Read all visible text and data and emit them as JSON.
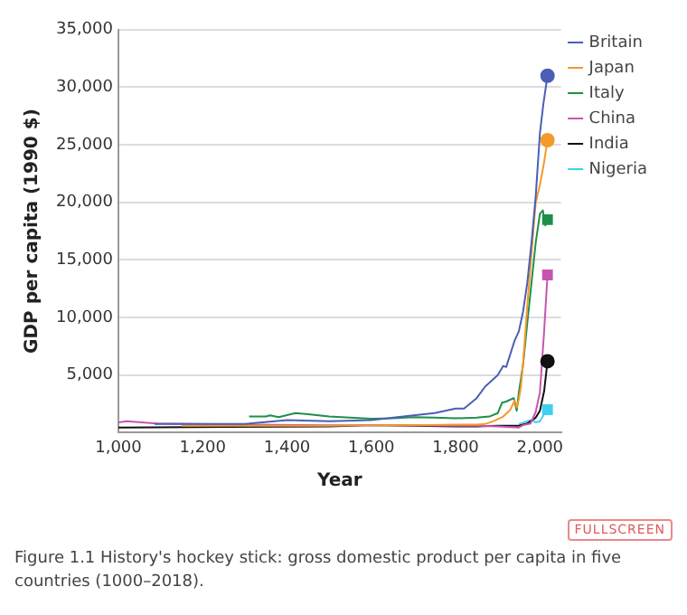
{
  "chart_data": {
    "type": "line",
    "xlabel": "Year",
    "ylabel": "GDP per capita (1990 $)",
    "xlim": [
      1000,
      2050
    ],
    "xticks": [
      {
        "value": 1000,
        "label": "1,000"
      },
      {
        "value": 1200,
        "label": "1,200"
      },
      {
        "value": 1400,
        "label": "1,400"
      },
      {
        "value": 1600,
        "label": "1,600"
      },
      {
        "value": 1800,
        "label": "1,800"
      },
      {
        "value": 2000,
        "label": "2,000"
      }
    ],
    "ylim": [
      0,
      35000
    ],
    "yticks": [
      {
        "value": 5000,
        "label": "5,000"
      },
      {
        "value": 10000,
        "label": "10,000"
      },
      {
        "value": 15000,
        "label": "15,000"
      },
      {
        "value": 20000,
        "label": "20,000"
      },
      {
        "value": 25000,
        "label": "25,000"
      },
      {
        "value": 30000,
        "label": "30,000"
      },
      {
        "value": 35000,
        "label": "35,000"
      }
    ],
    "grid": "y",
    "legend": "top right",
    "line_style": "solid",
    "annotations": [
      "FULLSCREEN",
      "Figure 1.1 History's hockey stick: gross domestic product per capita in five countries (1000–2018)."
    ],
    "series": [
      {
        "type": "scatter",
        "color": "#4a5fb5",
        "marker": "circle",
        "x": [
          2018
        ],
        "values": [
          31000
        ]
      },
      {
        "type": "scatter",
        "color": "#f39a2b",
        "marker": "circle",
        "x": [
          2018
        ],
        "values": [
          25400
        ]
      },
      {
        "type": "scatter",
        "color": "#1e8f4a",
        "marker": "square",
        "x": [
          2018
        ],
        "values": [
          18500
        ]
      },
      {
        "type": "scatter",
        "color": "#c756b0",
        "marker": "square",
        "x": [
          2018
        ],
        "values": [
          13700
        ]
      },
      {
        "type": "scatter",
        "color": "#111111",
        "marker": "circle",
        "x": [
          2018
        ],
        "values": [
          6200
        ]
      },
      {
        "type": "scatter",
        "color": "#3fd0f0",
        "marker": "square",
        "x": [
          2018
        ],
        "values": [
          2000
        ]
      },
      {
        "name": "Britain",
        "color": "#4a5fb5",
        "marker": "none",
        "x": [
          1086,
          1300,
          1400,
          1500,
          1600,
          1700,
          1750,
          1800,
          1820,
          1850,
          1870,
          1900,
          1913,
          1920,
          1940,
          1950,
          1960,
          1970,
          1980,
          1990,
          2000,
          2008,
          2018
        ],
        "values": [
          750,
          750,
          1100,
          1000,
          1100,
          1500,
          1700,
          2100,
          2100,
          3000,
          4000,
          5000,
          5800,
          5700,
          8000,
          8800,
          10500,
          13000,
          16500,
          20500,
          26000,
          28500,
          31000
        ]
      },
      {
        "name": "Japan",
        "color": "#f39a2b",
        "marker": "none",
        "x": [
          1150,
          1300,
          1400,
          1500,
          1600,
          1700,
          1800,
          1850,
          1870,
          1890,
          1913,
          1930,
          1940,
          1945,
          1950,
          1955,
          1960,
          1970,
          1980,
          1990,
          2000,
          2010,
          2018
        ],
        "values": [
          600,
          600,
          600,
          600,
          650,
          650,
          700,
          700,
          750,
          1000,
          1400,
          2000,
          2800,
          2200,
          2900,
          4000,
          6000,
          11000,
          15500,
          20000,
          21500,
          23500,
          25400
        ]
      },
      {
        "name": "Italy",
        "color": "#1e8f4a",
        "marker": "none",
        "x": [
          1310,
          1350,
          1360,
          1380,
          1420,
          1450,
          1500,
          1550,
          1600,
          1650,
          1700,
          1750,
          1800,
          1850,
          1880,
          1900,
          1910,
          1920,
          1938,
          1945,
          1950,
          1960,
          1970,
          1980,
          1990,
          2000,
          2007,
          2013,
          2018
        ],
        "values": [
          1400,
          1400,
          1500,
          1350,
          1700,
          1600,
          1400,
          1300,
          1200,
          1250,
          1350,
          1300,
          1250,
          1300,
          1400,
          1700,
          2600,
          2700,
          3000,
          1900,
          3500,
          5900,
          9500,
          13000,
          16500,
          19000,
          19300,
          18000,
          18500
        ]
      },
      {
        "name": "China",
        "color": "#c756b0",
        "marker": "none",
        "x": [
          1000,
          1020,
          1090,
          1300,
          1500,
          1600,
          1700,
          1800,
          1850,
          1900,
          1950,
          1960,
          1978,
          1990,
          2000,
          2010,
          2018
        ],
        "values": [
          900,
          1000,
          800,
          700,
          650,
          650,
          650,
          600,
          600,
          550,
          450,
          650,
          800,
          1800,
          3500,
          8800,
          13700
        ]
      },
      {
        "name": "India",
        "color": "#111111",
        "marker": "none",
        "x": [
          1000,
          1500,
          1600,
          1700,
          1800,
          1850,
          1900,
          1950,
          1970,
          1990,
          2000,
          2010,
          2018
        ],
        "values": [
          450,
          550,
          650,
          600,
          550,
          550,
          600,
          600,
          800,
          1300,
          1900,
          3600,
          6200
        ]
      },
      {
        "name": "Nigeria",
        "color": "#3fd0f0",
        "marker": "none",
        "x": [
          1950,
          1970,
          1980,
          1990,
          2000,
          2010,
          2018
        ],
        "values": [
          750,
          1000,
          1100,
          900,
          1000,
          1600,
          2000
        ]
      }
    ]
  }
}
